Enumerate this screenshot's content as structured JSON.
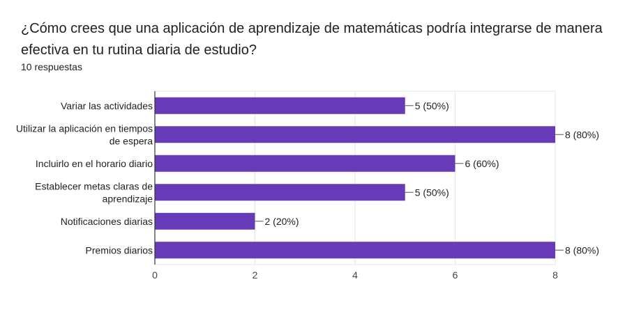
{
  "header": {
    "question": "¿Cómo crees que una aplicación de aprendizaje de matemáticas podría integrarse de manera efectiva en tu rutina diaria de estudio?",
    "responses": "10 respuestas"
  },
  "chart_data": {
    "type": "bar",
    "orientation": "horizontal",
    "categories": [
      [
        "Variar las actividades"
      ],
      [
        "Utilizar la aplicación en tiempos",
        "de espera"
      ],
      [
        "Incluirlo en el horario diario"
      ],
      [
        "Establecer metas claras de",
        "aprendizaje"
      ],
      [
        "Notificaciones diarias"
      ],
      [
        "Premios diarios"
      ]
    ],
    "values": [
      5,
      8,
      6,
      5,
      2,
      8
    ],
    "data_labels": [
      "5 (50%)",
      "8 (80%)",
      "6 (60%)",
      "5 (50%)",
      "2 (20%)",
      "8 (80%)"
    ],
    "xlim": [
      0,
      8
    ],
    "xticks": [
      "0",
      "2",
      "4",
      "6",
      "8"
    ],
    "grid": true,
    "colors": {
      "bar": "#673ab7",
      "grid": "#e6e6e6",
      "axis": "#333333"
    }
  }
}
